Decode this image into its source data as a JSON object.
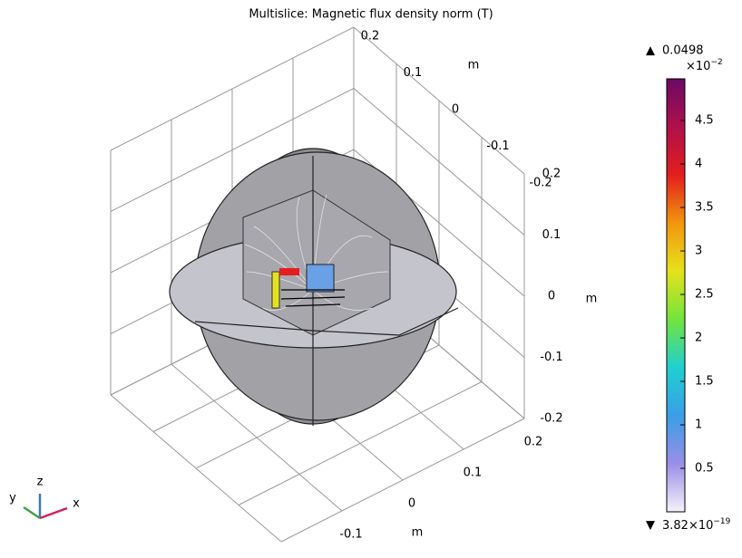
{
  "chart_data": {
    "type": "multislice",
    "title": "Multislice: Magnetic flux density norm (T)",
    "x_label": "m",
    "y_label": "m",
    "z_label": "m",
    "xlim": [
      -0.2,
      0.2
    ],
    "ylim": [
      -0.2,
      0.2
    ],
    "zlim": [
      -0.2,
      0.2
    ],
    "xticks": [
      -0.2,
      -0.1,
      0,
      0.1,
      0.2
    ],
    "yticks": [
      -0.2,
      -0.1,
      0,
      0.1,
      0.2
    ],
    "zticks": [
      -0.2,
      -0.1,
      0,
      0.1,
      0.2
    ],
    "grid": true,
    "colorbar": {
      "max_label": "0.0498",
      "min_label": "3.82×10",
      "min_exponent": "−19",
      "multiplier": "×10",
      "multiplier_exponent": "−2",
      "clim": [
        3.82e-17,
        4.98
      ],
      "ticks": [
        0.5,
        1,
        1.5,
        2,
        2.5,
        3,
        3.5,
        4,
        4.5
      ],
      "colormap": [
        "#f6f2fb",
        "#9a8ee6",
        "#3a9ee6",
        "#1fd0d0",
        "#72e43c",
        "#e6e21c",
        "#f2960e",
        "#e31e1e",
        "#b0104a",
        "#6a0a66"
      ]
    },
    "triad": {
      "x": "x",
      "y": "y",
      "z": "z"
    }
  }
}
